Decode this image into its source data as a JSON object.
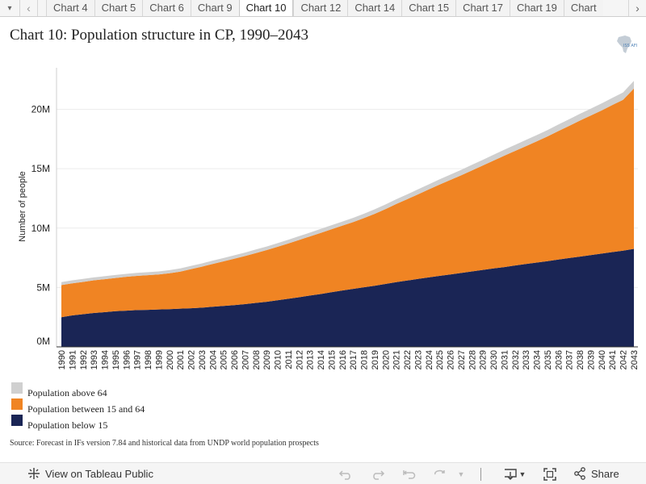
{
  "tabs": {
    "items": [
      "Chart 4",
      "Chart 5",
      "Chart 6",
      "Chart 9",
      "Chart 10",
      "Chart 12",
      "Chart 14",
      "Chart 15",
      "Chart 17",
      "Chart 19",
      "Chart"
    ],
    "active": "Chart 10"
  },
  "title": "Chart 10: Population structure in CP, 1990–2043",
  "logo_text": "ISS AFI",
  "chart_data": {
    "type": "area",
    "stacked": true,
    "title": "Chart 10: Population structure in CP, 1990–2043",
    "xlabel": "",
    "ylabel": "Number of people",
    "ylim": [
      0,
      23.5
    ],
    "y_unit": "M",
    "yticks": [
      "0M",
      "5M",
      "10M",
      "15M",
      "20M"
    ],
    "grid": true,
    "legend_position": "bottom-left",
    "x": [
      1990,
      1991,
      1992,
      1993,
      1994,
      1995,
      1996,
      1997,
      1998,
      1999,
      2000,
      2001,
      2002,
      2003,
      2004,
      2005,
      2006,
      2007,
      2008,
      2009,
      2010,
      2011,
      2012,
      2013,
      2014,
      2015,
      2016,
      2017,
      2018,
      2019,
      2020,
      2021,
      2022,
      2023,
      2024,
      2025,
      2026,
      2027,
      2028,
      2029,
      2030,
      2031,
      2032,
      2033,
      2034,
      2035,
      2036,
      2037,
      2038,
      2039,
      2040,
      2041,
      2042,
      2043
    ],
    "series": [
      {
        "name": "Population below 15",
        "color": "#1a2555",
        "values": [
          2.5,
          2.65,
          2.75,
          2.85,
          2.92,
          3.0,
          3.05,
          3.1,
          3.12,
          3.15,
          3.18,
          3.22,
          3.25,
          3.3,
          3.38,
          3.45,
          3.52,
          3.6,
          3.7,
          3.8,
          3.92,
          4.05,
          4.18,
          4.32,
          4.45,
          4.6,
          4.75,
          4.88,
          5.02,
          5.15,
          5.3,
          5.45,
          5.58,
          5.72,
          5.85,
          5.98,
          6.1,
          6.22,
          6.35,
          6.48,
          6.6,
          6.72,
          6.85,
          6.98,
          7.1,
          7.22,
          7.35,
          7.48,
          7.6,
          7.72,
          7.85,
          7.98,
          8.1,
          8.25
        ]
      },
      {
        "name": "Population between 15 and 64",
        "color": "#f08423",
        "values": [
          2.7,
          2.7,
          2.72,
          2.75,
          2.78,
          2.8,
          2.85,
          2.88,
          2.92,
          2.95,
          3.02,
          3.12,
          3.3,
          3.45,
          3.6,
          3.75,
          3.9,
          4.05,
          4.2,
          4.35,
          4.5,
          4.65,
          4.82,
          4.98,
          5.15,
          5.3,
          5.45,
          5.62,
          5.82,
          6.05,
          6.3,
          6.58,
          6.85,
          7.12,
          7.4,
          7.68,
          7.95,
          8.22,
          8.5,
          8.78,
          9.08,
          9.38,
          9.65,
          9.92,
          10.2,
          10.5,
          10.82,
          11.12,
          11.45,
          11.75,
          12.05,
          12.38,
          12.7,
          13.5
        ]
      },
      {
        "name": "Population above 64",
        "color": "#cfcfcf",
        "values": [
          0.25,
          0.25,
          0.25,
          0.25,
          0.25,
          0.25,
          0.25,
          0.25,
          0.25,
          0.25,
          0.26,
          0.26,
          0.27,
          0.27,
          0.28,
          0.28,
          0.29,
          0.29,
          0.3,
          0.3,
          0.31,
          0.31,
          0.32,
          0.32,
          0.33,
          0.34,
          0.35,
          0.36,
          0.37,
          0.38,
          0.39,
          0.4,
          0.41,
          0.42,
          0.43,
          0.44,
          0.45,
          0.46,
          0.47,
          0.48,
          0.49,
          0.5,
          0.51,
          0.52,
          0.53,
          0.54,
          0.55,
          0.56,
          0.57,
          0.58,
          0.59,
          0.6,
          0.62,
          0.65
        ]
      }
    ],
    "legend": [
      {
        "name": "Population above 64",
        "color": "#d0d0d0"
      },
      {
        "name": "Population between 15 and 64",
        "color": "#f08423"
      },
      {
        "name": "Population below 15",
        "color": "#1a2555"
      }
    ]
  },
  "source": "Source: Forecast in IFs version 7.84 and historical data from UNDP world population prospects",
  "toolbar": {
    "view_label": "View on Tableau Public",
    "share_label": "Share"
  }
}
